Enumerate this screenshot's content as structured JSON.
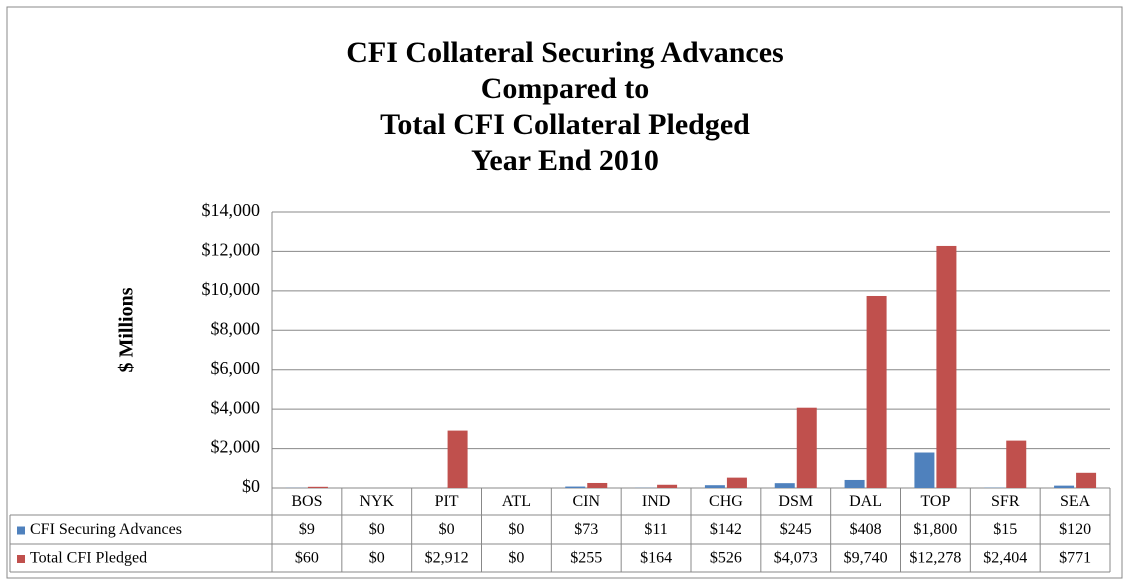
{
  "chart_data": {
    "type": "bar",
    "title": [
      "CFI Collateral Securing Advances",
      "Compared to",
      "Total CFI Collateral Pledged",
      "Year End 2010"
    ],
    "y_axis_label": "$ Millions",
    "categories": [
      "BOS",
      "NYK",
      "PIT",
      "ATL",
      "CIN",
      "IND",
      "CHG",
      "DSM",
      "DAL",
      "TOP",
      "SFR",
      "SEA"
    ],
    "series": [
      {
        "name": "CFI Securing Advances",
        "color": "#4f81bd",
        "values": [
          9,
          0,
          0,
          0,
          73,
          11,
          142,
          245,
          408,
          1800,
          15,
          120
        ],
        "value_labels": [
          "$9",
          "$0",
          "$0",
          "$0",
          "$73",
          "$11",
          "$142",
          "$245",
          "$408",
          "$1,800",
          "$15",
          "$120"
        ]
      },
      {
        "name": "Total CFI Pledged",
        "color": "#c0504d",
        "values": [
          60,
          0,
          2912,
          0,
          255,
          164,
          526,
          4073,
          9740,
          12278,
          2404,
          771
        ],
        "value_labels": [
          "$60",
          "$0",
          "$2,912",
          "$0",
          "$255",
          "$164",
          "$526",
          "$4,073",
          "$9,740",
          "$12,278",
          "$2,404",
          "$771"
        ]
      }
    ],
    "ylim": [
      0,
      14000
    ],
    "yticks": [
      {
        "value": 0,
        "label": "$0"
      },
      {
        "value": 2000,
        "label": "$2,000"
      },
      {
        "value": 4000,
        "label": "$4,000"
      },
      {
        "value": 6000,
        "label": "$6,000"
      },
      {
        "value": 8000,
        "label": "$8,000"
      },
      {
        "value": 10000,
        "label": "$10,000"
      },
      {
        "value": 12000,
        "label": "$12,000"
      },
      {
        "value": 14000,
        "label": "$14,000"
      }
    ],
    "grid": true
  }
}
